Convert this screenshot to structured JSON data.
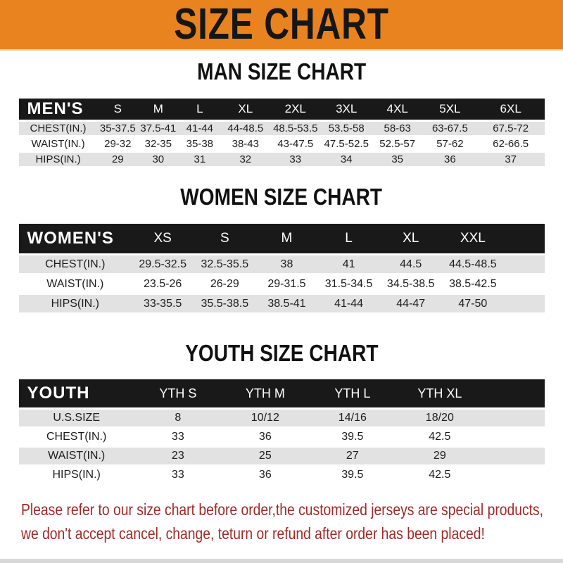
{
  "banner": {
    "title": "SIZE CHART"
  },
  "sections": [
    {
      "heading": "MAN SIZE CHART",
      "table": {
        "header_label": "MEN'S",
        "columns": [
          "S",
          "M",
          "L",
          "XL",
          "2XL",
          "3XL",
          "4XL",
          "5XL",
          "6XL"
        ],
        "rows": [
          {
            "label": "CHEST(IN.)",
            "values": [
              "35-37.5",
              "37.5-41",
              "41-44",
              "44-48.5",
              "48.5-53.5",
              "53.5-58",
              "58-63",
              "63-67.5",
              "67.5-72"
            ]
          },
          {
            "label": "WAIST(IN.)",
            "values": [
              "29-32",
              "32-35",
              "35-38",
              "38-43",
              "43-47.5",
              "47.5-52.5",
              "52.5-57",
              "57-62",
              "62-66.5"
            ]
          },
          {
            "label": "HIPS(IN.)",
            "values": [
              "29",
              "30",
              "31",
              "32",
              "33",
              "34",
              "35",
              "36",
              "37"
            ]
          }
        ]
      }
    },
    {
      "heading": "WOMEN SIZE CHART",
      "table": {
        "header_label": "WOMEN'S",
        "columns": [
          "XS",
          "S",
          "M",
          "L",
          "XL",
          "XXL"
        ],
        "rows": [
          {
            "label": "CHEST(IN.)",
            "values": [
              "29.5-32.5",
              "32.5-35.5",
              "38",
              "41",
              "44.5",
              "44.5-48.5"
            ]
          },
          {
            "label": "WAIST(IN.)",
            "values": [
              "23.5-26",
              "26-29",
              "29-31.5",
              "31.5-34.5",
              "34.5-38.5",
              "38.5-42.5"
            ]
          },
          {
            "label": "HIPS(IN.)",
            "values": [
              "33-35.5",
              "35.5-38.5",
              "38.5-41",
              "41-44",
              "44-47",
              "47-50"
            ]
          }
        ]
      }
    },
    {
      "heading": "YOUTH SIZE CHART",
      "table": {
        "header_label": "YOUTH",
        "columns": [
          "YTH S",
          "YTH M",
          "YTH L",
          "YTH XL"
        ],
        "rows": [
          {
            "label": "U.S.SIZE",
            "values": [
              "8",
              "10/12",
              "14/16",
              "18/20"
            ]
          },
          {
            "label": "CHEST(IN.)",
            "values": [
              "33",
              "36",
              "39.5",
              "42.5"
            ]
          },
          {
            "label": "WAIST(IN.)",
            "values": [
              "23",
              "25",
              "27",
              "29"
            ]
          },
          {
            "label": "HIPS(IN.)",
            "values": [
              "33",
              "36",
              "39.5",
              "42.5"
            ]
          }
        ]
      }
    }
  ],
  "footer": {
    "line1": "Please refer to our size chart before order,the customized jerseys are special products,",
    "line2": "we don't accept cancel, change, teturn or refund after order has been placed!"
  },
  "colors": {
    "banner_orange": "#E8831F",
    "bar_black": "#191919",
    "row_gray": "#E2E2E2",
    "row_white": "#FFFFFF",
    "footer_red": "#9E2B28",
    "heading_black": "#111111"
  }
}
